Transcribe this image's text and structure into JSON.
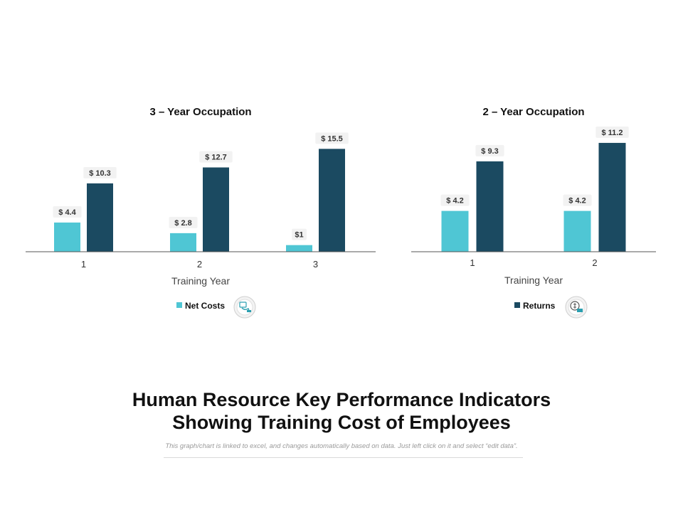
{
  "colors": {
    "net_costs": "#4fc6d4",
    "returns": "#1b4a61",
    "axis": "#555555",
    "label_bg": "#f2f2f2"
  },
  "chart_data": [
    {
      "type": "bar",
      "title": "3 – Year Occupation",
      "xlabel": "Training Year",
      "ylabel": "",
      "categories": [
        "1",
        "2",
        "3"
      ],
      "ylim": [
        0,
        16.5
      ],
      "legend": "bottom",
      "series": [
        {
          "name": "Net Costs",
          "key": "net_costs",
          "values": [
            4.4,
            2.8,
            1
          ],
          "labels": [
            "$ 4.4",
            "$ 2.8",
            "$1"
          ]
        }
      ],
      "series_unlabeled_legend": [
        {
          "key": "returns",
          "values": [
            10.3,
            12.7,
            15.5
          ],
          "labels": [
            "$ 10.3",
            "$ 12.7",
            "$ 15.5"
          ]
        }
      ],
      "legend_icon": "hand-coin-icon"
    },
    {
      "type": "bar",
      "title": "2 – Year Occupation",
      "xlabel": "Training Year",
      "ylabel": "",
      "categories": [
        "1",
        "2"
      ],
      "ylim": [
        0,
        12
      ],
      "legend": "bottom",
      "series": [
        {
          "name": "Returns",
          "key": "returns",
          "values": [
            9.3,
            11.2
          ],
          "labels": [
            "$ 9.3",
            "$ 11.2"
          ]
        }
      ],
      "series_unlabeled_legend": [
        {
          "key": "net_costs",
          "values": [
            4.2,
            4.2
          ],
          "labels": [
            "$ 4.2",
            "$ 4.2"
          ]
        }
      ],
      "legend_icon": "dollar-coin-icon"
    }
  ],
  "footer": {
    "title_line1": "Human Resource Key Performance Indicators",
    "title_line2": "Showing Training Cost of Employees",
    "note": "This graph/chart is linked to excel, and changes automatically based on data. Just left click on it and select “edit data”."
  }
}
